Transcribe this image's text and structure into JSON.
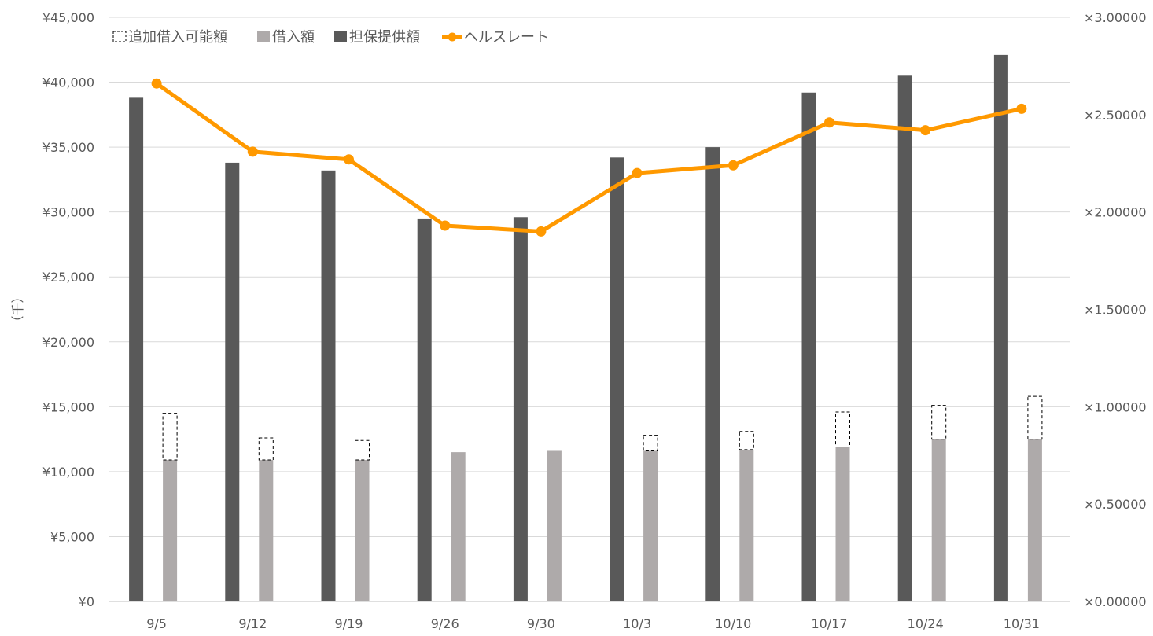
{
  "chart_data": {
    "type": "bar",
    "categories": [
      "9/5",
      "9/12",
      "9/19",
      "9/26",
      "9/30",
      "10/3",
      "10/10",
      "10/17",
      "10/24",
      "10/31"
    ],
    "ylabel": "（千）",
    "ylim": [
      0,
      45000
    ],
    "y_ticks": [
      "¥0",
      "¥5,000",
      "¥10,000",
      "¥15,000",
      "¥20,000",
      "¥25,000",
      "¥30,000",
      "¥35,000",
      "¥40,000",
      "¥45,000"
    ],
    "y2lim": [
      0,
      3.0
    ],
    "y2_ticks": [
      "×0.00000",
      "×0.50000",
      "×1.00000",
      "×1.50000",
      "×2.00000",
      "×2.50000",
      "×3.00000"
    ],
    "grid": true,
    "legend_position": "top-left",
    "series": [
      {
        "name": "追加借入可能額",
        "type": "stacked-bar-outline",
        "axis": "left",
        "values": [
          3600,
          1700,
          1500,
          0,
          0,
          1200,
          1400,
          2700,
          2600,
          3300
        ]
      },
      {
        "name": "借入額",
        "type": "bar",
        "axis": "left",
        "values": [
          10900,
          10900,
          10900,
          11500,
          11600,
          11600,
          11700,
          11900,
          12500,
          12500
        ]
      },
      {
        "name": "担保提供額",
        "type": "bar",
        "axis": "left",
        "values": [
          38800,
          33800,
          33200,
          29500,
          29600,
          34200,
          35000,
          39200,
          40500,
          42100
        ]
      },
      {
        "name": "ヘルスレート",
        "type": "line",
        "axis": "right",
        "values": [
          2.66,
          2.31,
          2.27,
          1.93,
          1.9,
          2.2,
          2.24,
          2.46,
          2.42,
          2.53
        ]
      }
    ],
    "colors": {
      "追加借入可能額": "#ffffff",
      "借入額": "#aeaaaa",
      "担保提供額": "#595959",
      "ヘルスレート": "#ff9900"
    }
  }
}
